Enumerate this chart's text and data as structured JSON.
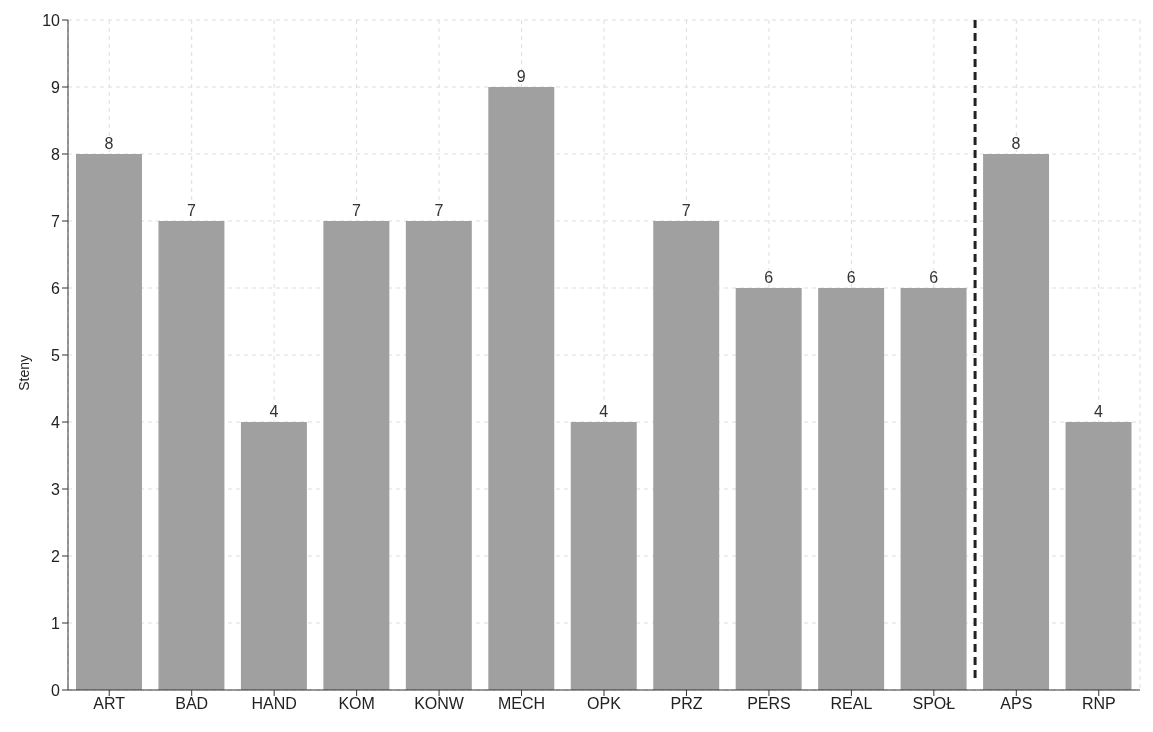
{
  "chart_data": {
    "type": "bar",
    "ylabel": "Steny",
    "categories": [
      "ART",
      "BAD",
      "HAND",
      "KOM",
      "KONW",
      "MECH",
      "OPK",
      "PRZ",
      "PERS",
      "REAL",
      "SPOŁ",
      "APS",
      "RNP"
    ],
    "values": [
      8,
      7,
      4,
      7,
      7,
      9,
      4,
      7,
      6,
      6,
      6,
      8,
      4
    ],
    "color": "#a0a0a0",
    "ylim": [
      0,
      10
    ],
    "yticks": [
      0,
      1,
      2,
      3,
      4,
      5,
      6,
      7,
      8,
      9,
      10
    ],
    "grid": true,
    "data_labels": true
  }
}
